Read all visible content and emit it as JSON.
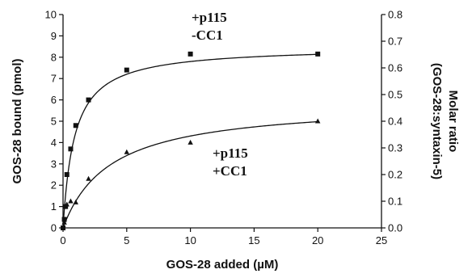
{
  "chart_data": {
    "type": "scatter",
    "xlabel": "GOS-28 added (µM)",
    "ylabel": "GOS-28 bound (pmol)",
    "y2label_line1": "Molar ratio",
    "y2label_line2": "(GOS-28:syntaxin-5)",
    "xlim": [
      0,
      25
    ],
    "ylim": [
      0,
      10
    ],
    "y2lim": [
      0,
      0.8
    ],
    "x_ticks": [
      "0",
      "5",
      "10",
      "15",
      "20",
      "25"
    ],
    "y_ticks": [
      "0",
      "1",
      "2",
      "3",
      "4",
      "5",
      "6",
      "7",
      "8",
      "9",
      "10"
    ],
    "y2_ticks": [
      "0.0",
      "0.1",
      "0.2",
      "0.3",
      "0.4",
      "0.5",
      "0.6",
      "0.7",
      "0.8"
    ],
    "grid": false,
    "series": [
      {
        "name": "+p115 -CC1",
        "label_line1": "+p115",
        "label_line2": "-CC1",
        "marker": "square",
        "points": [
          [
            0,
            0
          ],
          [
            0.1,
            0.4
          ],
          [
            0.2,
            1.0
          ],
          [
            0.3,
            2.5
          ],
          [
            0.6,
            3.7
          ],
          [
            1,
            4.8
          ],
          [
            2,
            6.0
          ],
          [
            5,
            7.4
          ],
          [
            10,
            8.15
          ],
          [
            20,
            8.15
          ]
        ],
        "fit_bmax": 8.5,
        "fit_kd": 0.9
      },
      {
        "name": "+p115 +CC1",
        "label_line1": "+p115",
        "label_line2": "+CC1",
        "marker": "triangle",
        "points": [
          [
            0,
            0
          ],
          [
            0.1,
            0.25
          ],
          [
            0.3,
            1.1
          ],
          [
            0.6,
            1.25
          ],
          [
            1,
            1.2
          ],
          [
            2,
            2.3
          ],
          [
            5,
            3.55
          ],
          [
            10,
            4.0
          ],
          [
            20,
            5.0
          ]
        ],
        "fit_bmax": 5.9,
        "fit_kd": 3.7
      }
    ]
  }
}
